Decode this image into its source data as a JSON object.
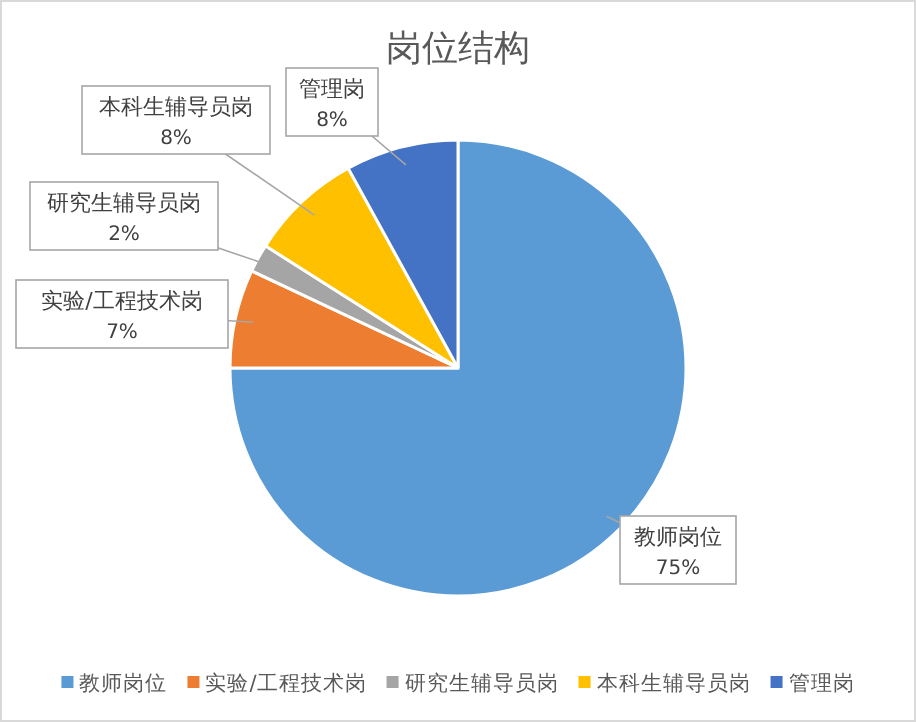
{
  "chart_data": {
    "type": "pie",
    "title": "岗位结构",
    "categories": [
      "教师岗位",
      "实验/工程技术岗",
      "研究生辅导员岗",
      "本科生辅导员岗",
      "管理岗"
    ],
    "values": [
      75,
      7,
      2,
      8,
      8
    ],
    "colors": [
      "#5b9bd5",
      "#ed7d31",
      "#a5a5a5",
      "#ffc000",
      "#4472c4"
    ],
    "value_labels": [
      "75%",
      "7%",
      "2%",
      "8%",
      "8%"
    ],
    "legend": "bottom"
  }
}
